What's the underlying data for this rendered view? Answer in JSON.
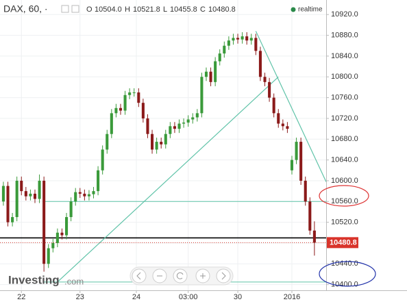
{
  "header": {
    "symbol": "DAX, 60, ·",
    "ohlc": [
      {
        "key": "O",
        "value": "10504.0"
      },
      {
        "key": "H",
        "value": "10521.8"
      },
      {
        "key": "L",
        "value": "10455.8"
      },
      {
        "key": "C",
        "value": "10480.8"
      }
    ],
    "realtime": "realtime"
  },
  "watermark": {
    "brand": "Investing",
    "suffix": ".com"
  },
  "chart_data": {
    "type": "candlestick",
    "up_color": "#3a9a3a",
    "down_color": "#8b1a1a",
    "open": [
      10560,
      10590,
      10520,
      10530,
      10600,
      10580,
      10570,
      10575,
      10565,
      10600,
      10440,
      10470,
      10480,
      10500,
      10495,
      10530,
      10560,
      10578,
      10575,
      10570,
      10574,
      10580,
      10620,
      10660,
      10690,
      10730,
      10740,
      10735,
      10765,
      10770,
      10770,
      10750,
      10720,
      10690,
      10660,
      10675,
      10670,
      10690,
      10705,
      10700,
      10710,
      10712,
      10718,
      10722,
      10730,
      10800,
      10810,
      10790,
      10830,
      10845,
      10860,
      10870,
      10875,
      10872,
      10878,
      10870,
      10875,
      10850,
      10800,
      10790,
      10760,
      10730,
      10710,
      10705,
      10620,
      10640,
      10675,
      10600,
      10560,
      10504.0
    ],
    "high": [
      10598,
      10598,
      10538,
      10608,
      10608,
      10588,
      10583,
      10583,
      10612,
      10608,
      10478,
      10488,
      10508,
      10508,
      10538,
      10568,
      10586,
      10586,
      10583,
      10582,
      10588,
      10628,
      10668,
      10698,
      10738,
      10748,
      10748,
      10773,
      10778,
      10778,
      10778,
      10758,
      10728,
      10698,
      10683,
      10683,
      10698,
      10713,
      10713,
      10718,
      10720,
      10726,
      10730,
      10738,
      10808,
      10818,
      10818,
      10838,
      10853,
      10868,
      10878,
      10883,
      10883,
      10886,
      10886,
      10883,
      10883,
      10858,
      10808,
      10798,
      10768,
      10738,
      10718,
      10713,
      10648,
      10683,
      10683,
      10608,
      10568,
      10521.8
    ],
    "low": [
      10552,
      10512,
      10512,
      10522,
      10572,
      10562,
      10562,
      10557,
      10557,
      10425,
      10432,
      10462,
      10472,
      10487,
      10487,
      10522,
      10552,
      10567,
      10562,
      10562,
      10566,
      10572,
      10612,
      10652,
      10682,
      10722,
      10727,
      10727,
      10757,
      10762,
      10742,
      10712,
      10682,
      10652,
      10652,
      10662,
      10662,
      10682,
      10692,
      10692,
      10702,
      10704,
      10710,
      10714,
      10722,
      10792,
      10782,
      10782,
      10822,
      10837,
      10852,
      10862,
      10864,
      10864,
      10862,
      10862,
      10842,
      10792,
      10782,
      10752,
      10722,
      10702,
      10697,
      10692,
      10612,
      10632,
      10592,
      10552,
      10496,
      10455.8
    ],
    "close": [
      10590,
      10520,
      10530,
      10600,
      10580,
      10570,
      10575,
      10565,
      10600,
      10440,
      10470,
      10480,
      10500,
      10495,
      10530,
      10560,
      10578,
      10575,
      10570,
      10574,
      10580,
      10620,
      10660,
      10690,
      10730,
      10740,
      10735,
      10765,
      10770,
      10770,
      10750,
      10720,
      10690,
      10660,
      10675,
      10670,
      10690,
      10705,
      10700,
      10710,
      10712,
      10718,
      10722,
      10730,
      10800,
      10810,
      10790,
      10830,
      10845,
      10860,
      10870,
      10875,
      10872,
      10878,
      10870,
      10875,
      10850,
      10800,
      10790,
      10760,
      10730,
      10710,
      10705,
      10700,
      10640,
      10675,
      10600,
      10560,
      10504,
      10480.8
    ],
    "xlim": [
      -0.75,
      71.6
    ],
    "xticks": [
      {
        "value": 4,
        "label": "22"
      },
      {
        "value": 17,
        "label": "23"
      },
      {
        "value": 29.5,
        "label": "24"
      },
      {
        "value": 41,
        "label": "03:00"
      },
      {
        "value": 52,
        "label": "30"
      },
      {
        "value": 64,
        "label": "2016"
      }
    ],
    "ylim": [
      10389,
      10948
    ],
    "yticks": [
      {
        "value": 10400,
        "label": "10400.0"
      },
      {
        "value": 10440,
        "label": "10440.0"
      },
      {
        "value": 10480,
        "label": "10480.0"
      },
      {
        "value": 10520,
        "label": "10520.0"
      },
      {
        "value": 10560,
        "label": "10560.0"
      },
      {
        "value": 10600,
        "label": "10600.0"
      },
      {
        "value": 10640,
        "label": "10640.0"
      },
      {
        "value": 10680,
        "label": "10680.0"
      },
      {
        "value": 10720,
        "label": "10720.0"
      },
      {
        "value": 10760,
        "label": "10760.0"
      },
      {
        "value": 10800,
        "label": "10800.0"
      },
      {
        "value": 10840,
        "label": "10840.0"
      },
      {
        "value": 10880,
        "label": "10880.0"
      },
      {
        "value": 10920,
        "label": "10920.0"
      }
    ],
    "grid": true,
    "hlines": [
      {
        "value": 10490,
        "color": "#000000"
      },
      {
        "value": 10560,
        "color": "#5fc3a8"
      },
      {
        "value": 10405,
        "color": "#5fc3a8"
      }
    ],
    "trendlines": [
      {
        "from": [
          12,
          10405
        ],
        "to": [
          61,
          10800
        ],
        "color": "#5fc3a8"
      },
      {
        "from": [
          56,
          10888
        ],
        "to": [
          71.6,
          10598
        ],
        "color": "#5fc3a8"
      }
    ],
    "price_line_color": "#d9342b"
  }
}
